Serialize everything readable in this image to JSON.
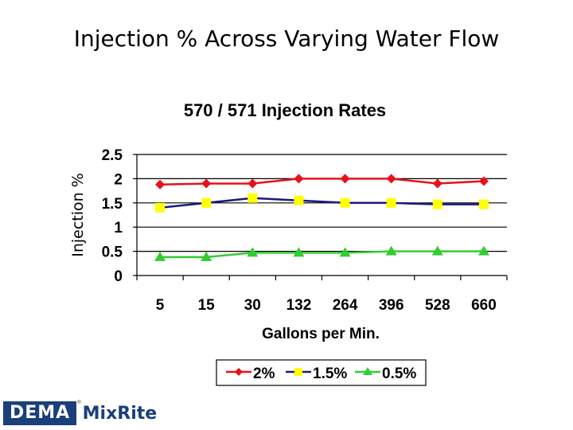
{
  "slide": {
    "title": "Injection % Across Varying Water Flow"
  },
  "logo": {
    "brand": "DEMA",
    "product": "MixRite",
    "registered": "®"
  },
  "chart_data": {
    "type": "line",
    "title": "570 / 571 Injection Rates",
    "xlabel": "Gallons per Min.",
    "ylabel": "Injection %",
    "categories": [
      "5",
      "15",
      "30",
      "132",
      "264",
      "396",
      "528",
      "660"
    ],
    "ylim": [
      0,
      2.5
    ],
    "yticks": [
      "0",
      "0.5",
      "1",
      "1.5",
      "2",
      "2.5"
    ],
    "grid": true,
    "legend_position": "bottom",
    "series": [
      {
        "name": "2%",
        "color": "#e8101a",
        "line_color": "#e8101a",
        "marker": "diamond",
        "values": [
          1.88,
          1.9,
          1.9,
          2.0,
          2.0,
          2.0,
          1.9,
          1.95
        ]
      },
      {
        "name": "1.5%",
        "color": "#ffff00",
        "line_color": "#1a1a7a",
        "marker": "square",
        "values": [
          1.4,
          1.5,
          1.6,
          1.55,
          1.5,
          1.5,
          1.47,
          1.47
        ]
      },
      {
        "name": "0.5%",
        "color": "#33cc33",
        "line_color": "#33cc33",
        "marker": "triangle",
        "values": [
          0.38,
          0.38,
          0.47,
          0.47,
          0.47,
          0.5,
          0.5,
          0.5
        ]
      }
    ]
  }
}
